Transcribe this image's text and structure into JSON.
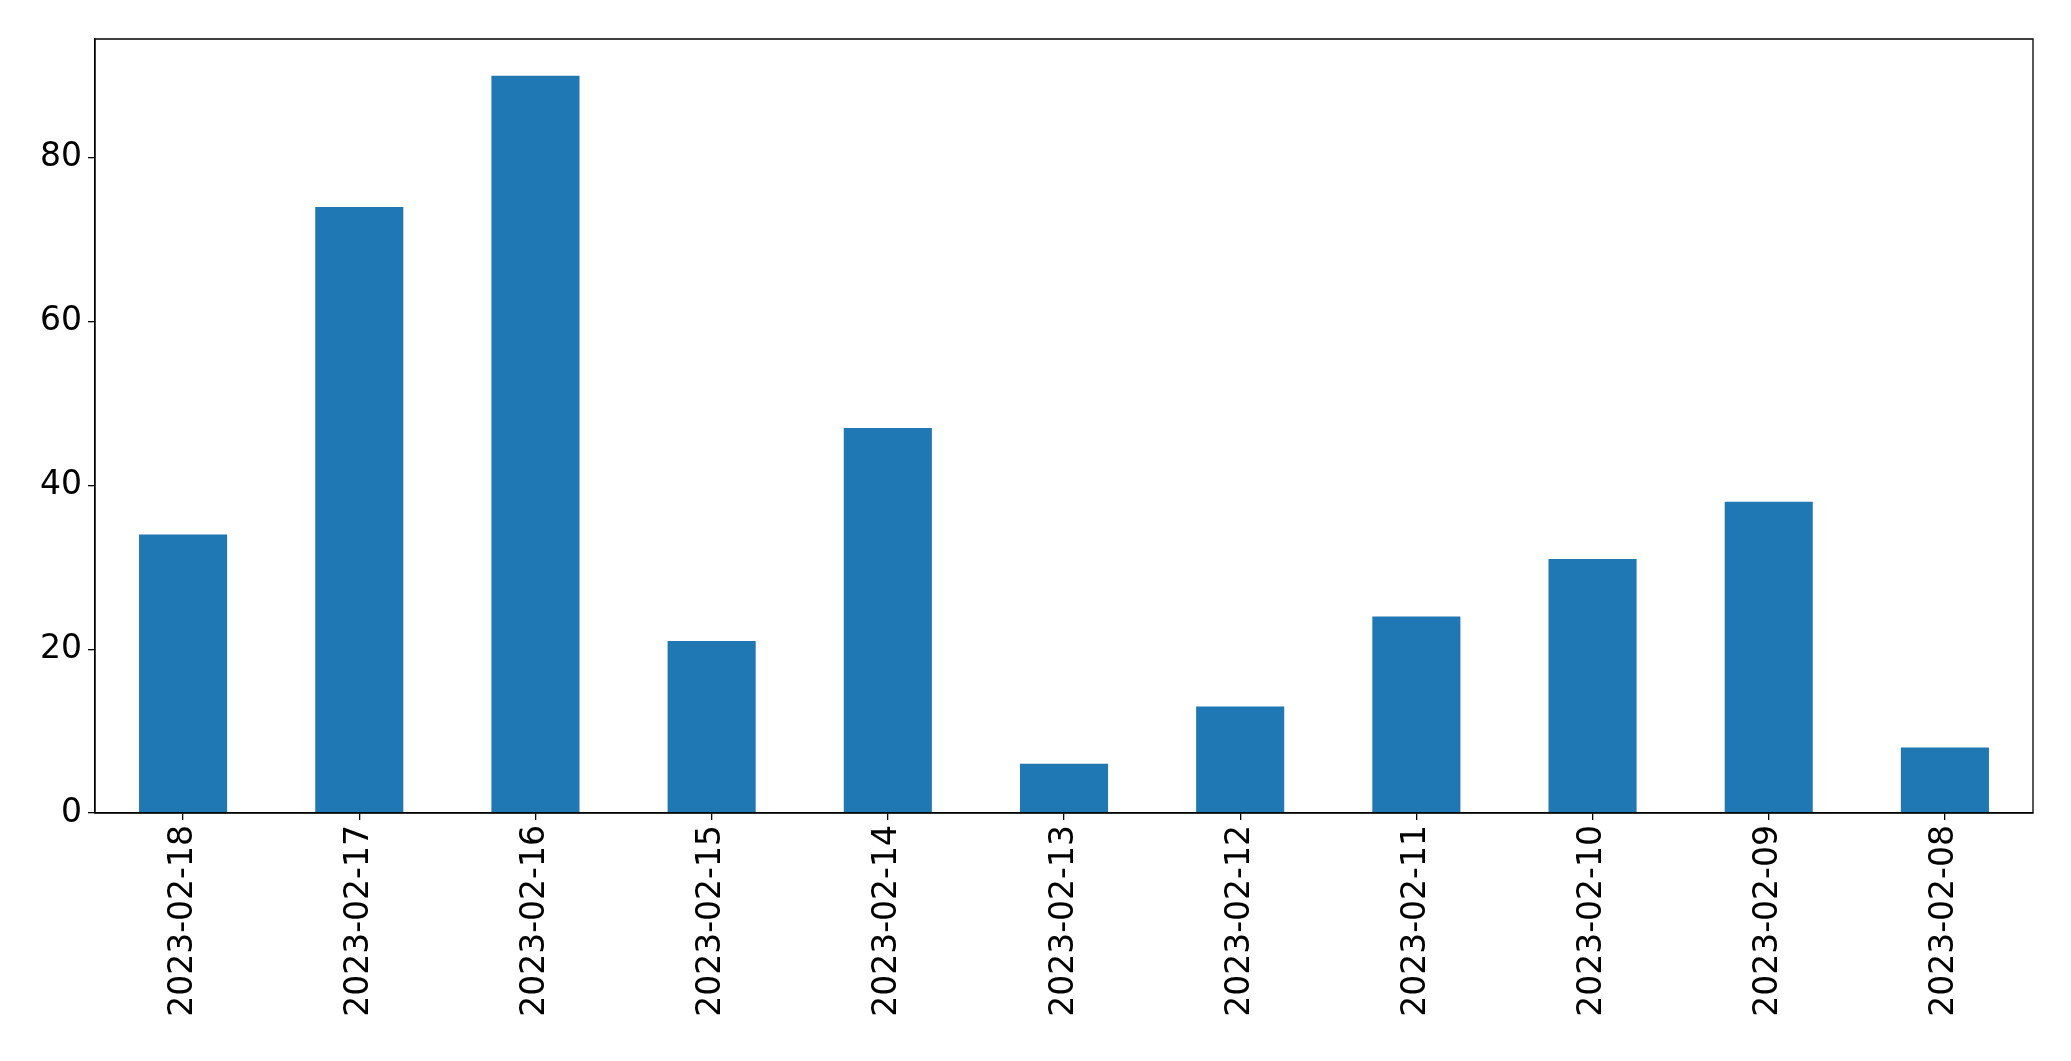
{
  "chart_data": {
    "type": "bar",
    "categories": [
      "2023-02-18",
      "2023-02-17",
      "2023-02-16",
      "2023-02-15",
      "2023-02-14",
      "2023-02-13",
      "2023-02-12",
      "2023-02-11",
      "2023-02-10",
      "2023-02-09",
      "2023-02-08"
    ],
    "values": [
      34,
      74,
      90,
      21,
      47,
      6,
      13,
      24,
      31,
      38,
      8
    ],
    "color": "#1f77b4",
    "ylim": [
      0,
      94.5
    ],
    "yticks": [
      0,
      20,
      40,
      60,
      80
    ]
  }
}
